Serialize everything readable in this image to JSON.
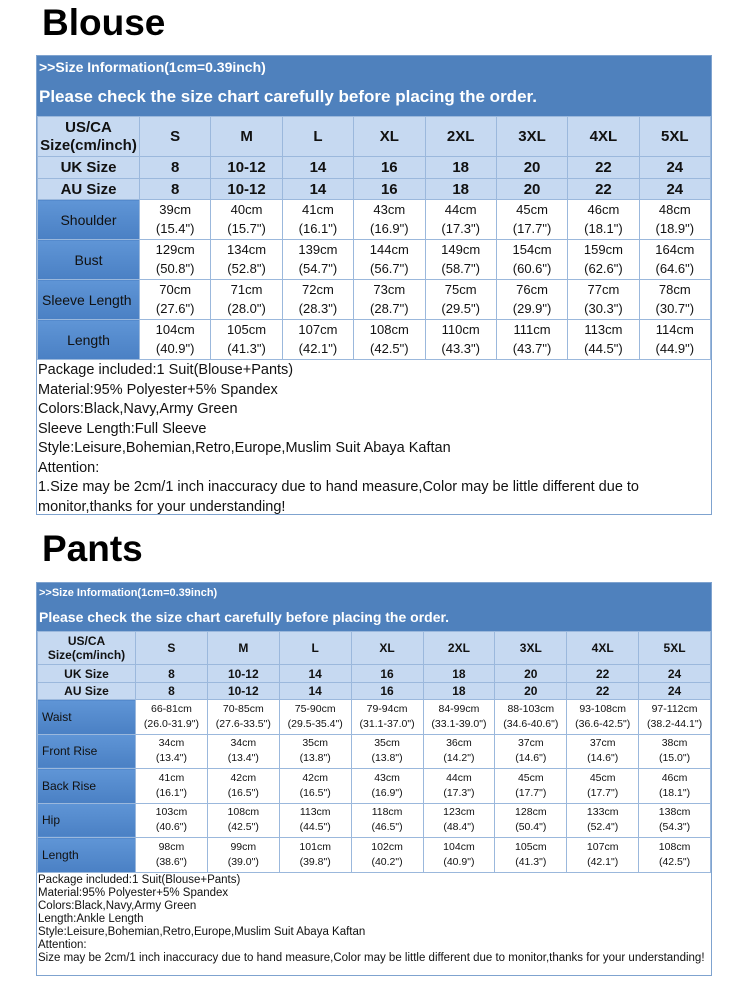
{
  "blouse": {
    "title": "Blouse",
    "info": ">>Size Information(1cm=0.39inch)",
    "notice": "Please check the size chart carefully before placing the order.",
    "header_label": [
      "US/CA",
      "Size(cm/inch)"
    ],
    "sizes": [
      "S",
      "M",
      "L",
      "XL",
      "2XL",
      "3XL",
      "4XL",
      "5XL"
    ],
    "uk_label": "UK Size",
    "uk": [
      "8",
      "10-12",
      "14",
      "16",
      "18",
      "20",
      "22",
      "24"
    ],
    "au_label": "AU Size",
    "au": [
      "8",
      "10-12",
      "14",
      "16",
      "18",
      "20",
      "22",
      "24"
    ],
    "rows": [
      {
        "label": "Shoulder",
        "cm": [
          "39cm",
          "40cm",
          "41cm",
          "43cm",
          "44cm",
          "45cm",
          "46cm",
          "48cm"
        ],
        "inch": [
          "(15.4\")",
          "(15.7\")",
          "(16.1\")",
          "(16.9\")",
          "(17.3\")",
          "(17.7\")",
          "(18.1\")",
          "(18.9\")"
        ]
      },
      {
        "label": "Bust",
        "cm": [
          "129cm",
          "134cm",
          "139cm",
          "144cm",
          "149cm",
          "154cm",
          "159cm",
          "164cm"
        ],
        "inch": [
          "(50.8\")",
          "(52.8\")",
          "(54.7\")",
          "(56.7\")",
          "(58.7\")",
          "(60.6\")",
          "(62.6\")",
          "(64.6\")"
        ]
      },
      {
        "label": "Sleeve Length",
        "cm": [
          "70cm",
          "71cm",
          "72cm",
          "73cm",
          "75cm",
          "76cm",
          "77cm",
          "78cm"
        ],
        "inch": [
          "(27.6\")",
          "(28.0\")",
          "(28.3\")",
          "(28.7\")",
          "(29.5\")",
          "(29.9\")",
          "(30.3\")",
          "(30.7\")"
        ]
      },
      {
        "label": "Length",
        "cm": [
          "104cm",
          "105cm",
          "107cm",
          "108cm",
          "110cm",
          "111cm",
          "113cm",
          "114cm"
        ],
        "inch": [
          "(40.9\")",
          "(41.3\")",
          "(42.1\")",
          "(42.5\")",
          "(43.3\")",
          "(43.7\")",
          "(44.5\")",
          "(44.9\")"
        ]
      }
    ],
    "notes": [
      "Package included:1 Suit(Blouse+Pants)",
      "Material:95% Polyester+5% Spandex",
      "Colors:Black,Navy,Army Green",
      "Sleeve Length:Full Sleeve",
      "Style:Leisure,Bohemian,Retro,Europe,Muslim Suit Abaya Kaftan",
      "Attention:",
      "1.Size may be 2cm/1 inch inaccuracy due to hand measure,Color may be little different due to monitor,thanks for your understanding!"
    ]
  },
  "pants": {
    "title": "Pants",
    "info": ">>Size Information(1cm=0.39inch)",
    "notice": "Please check the size chart carefully before placing the order.",
    "header_label": [
      "US/CA",
      "Size(cm/inch)"
    ],
    "sizes": [
      "S",
      "M",
      "L",
      "XL",
      "2XL",
      "3XL",
      "4XL",
      "5XL"
    ],
    "uk_label": "UK Size",
    "uk": [
      "8",
      "10-12",
      "14",
      "16",
      "18",
      "20",
      "22",
      "24"
    ],
    "au_label": "AU Size",
    "au": [
      "8",
      "10-12",
      "14",
      "16",
      "18",
      "20",
      "22",
      "24"
    ],
    "rows": [
      {
        "label": "Waist",
        "cm": [
          "66-81cm",
          "70-85cm",
          "75-90cm",
          "79-94cm",
          "84-99cm",
          "88-103cm",
          "93-108cm",
          "97-112cm"
        ],
        "inch": [
          "(26.0-31.9\")",
          "(27.6-33.5\")",
          "(29.5-35.4\")",
          "(31.1-37.0\")",
          "(33.1-39.0\")",
          "(34.6-40.6\")",
          "(36.6-42.5\")",
          "(38.2-44.1\")"
        ]
      },
      {
        "label": "Front Rise",
        "cm": [
          "34cm",
          "34cm",
          "35cm",
          "35cm",
          "36cm",
          "37cm",
          "37cm",
          "38cm"
        ],
        "inch": [
          "(13.4\")",
          "(13.4\")",
          "(13.8\")",
          "(13.8\")",
          "(14.2\")",
          "(14.6\")",
          "(14.6\")",
          "(15.0\")"
        ]
      },
      {
        "label": "Back Rise",
        "cm": [
          "41cm",
          "42cm",
          "42cm",
          "43cm",
          "44cm",
          "45cm",
          "45cm",
          "46cm"
        ],
        "inch": [
          "(16.1\")",
          "(16.5\")",
          "(16.5\")",
          "(16.9\")",
          "(17.3\")",
          "(17.7\")",
          "(17.7\")",
          "(18.1\")"
        ]
      },
      {
        "label": "Hip",
        "cm": [
          "103cm",
          "108cm",
          "113cm",
          "118cm",
          "123cm",
          "128cm",
          "133cm",
          "138cm"
        ],
        "inch": [
          "(40.6\")",
          "(42.5\")",
          "(44.5\")",
          "(46.5\")",
          "(48.4\")",
          "(50.4\")",
          "(52.4\")",
          "(54.3\")"
        ]
      },
      {
        "label": "Length",
        "cm": [
          "98cm",
          "99cm",
          "101cm",
          "102cm",
          "104cm",
          "105cm",
          "107cm",
          "108cm"
        ],
        "inch": [
          "(38.6\")",
          "(39.0\")",
          "(39.8\")",
          "(40.2\")",
          "(40.9\")",
          "(41.3\")",
          "(42.1\")",
          "(42.5\")"
        ]
      }
    ],
    "notes": [
      "Package included:1 Suit(Blouse+Pants)",
      "Material:95% Polyester+5% Spandex",
      "Colors:Black,Navy,Army Green",
      "Length:Ankle Length",
      "Style:Leisure,Bohemian,Retro,Europe,Muslim Suit Abaya Kaftan",
      "Attention:",
      "Size may be 2cm/1 inch inaccuracy due to hand measure,Color may be little different due to monitor,thanks for your understanding!"
    ]
  },
  "colors": {
    "header_bar": "#4f81bd",
    "size_header": "#c6d9f1",
    "row_label": "#558ed5"
  }
}
